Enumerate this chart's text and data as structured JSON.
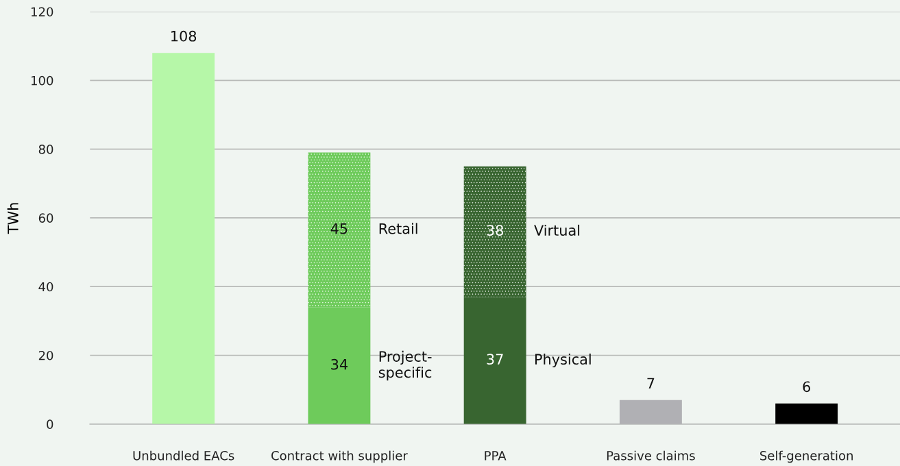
{
  "chart_data": {
    "type": "bar",
    "stacked": true,
    "ylabel": "TWh",
    "categories": [
      "Unbundled EACs",
      "Contract with supplier",
      "PPA",
      "Passive claims",
      "Self-generation"
    ],
    "series": [
      {
        "colors": [
          "#b6f7a8",
          null,
          null,
          "#b0b0b4",
          "#000000"
        ],
        "values": [
          108,
          null,
          null,
          7,
          6
        ]
      },
      {
        "name": "Project-\nspecific",
        "color": "#6ecb5b",
        "values": [
          null,
          34,
          null,
          null,
          null
        ]
      },
      {
        "name": "Physical",
        "color": "#386530",
        "values": [
          null,
          null,
          37,
          null,
          null
        ]
      },
      {
        "name": "Retail",
        "color": "#6ecb5b",
        "values": [
          null,
          45,
          null,
          null,
          null
        ]
      },
      {
        "name": "Virtual",
        "color": "#386530",
        "values": [
          null,
          null,
          38,
          null,
          null
        ]
      }
    ],
    "ylim": [
      0,
      120
    ],
    "yticks": [
      0,
      20,
      40,
      60,
      80,
      100,
      120
    ],
    "grid": "y",
    "data_labels": true
  }
}
